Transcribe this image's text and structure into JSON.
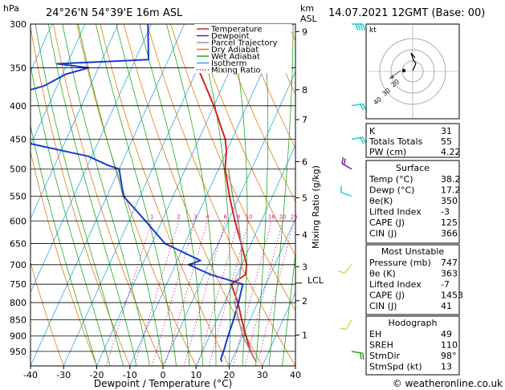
{
  "header": {
    "location": "24°26'N  54°39'E  16m  ASL",
    "date": "14.07.2021  12GMT  (Base: 00)"
  },
  "axes": {
    "y_unit": "hPa",
    "y_right_unit_1": "km",
    "y_right_unit_2": "ASL",
    "x_label": "Dewpoint / Temperature (°C)",
    "mixing_ratio_label": "Mixing Ratio (g/kg)",
    "lcl_label": "LCL",
    "kt_label": "kt"
  },
  "chart_data": {
    "type": "line",
    "subtype": "skew-T log-P",
    "pressure_levels": [
      300,
      350,
      400,
      450,
      500,
      550,
      600,
      650,
      700,
      750,
      800,
      850,
      900,
      950
    ],
    "x_ticks": [
      -40,
      -30,
      -20,
      -10,
      0,
      10,
      20,
      30,
      40
    ],
    "xlim": [
      -40,
      40
    ],
    "ylim": [
      1000,
      300
    ],
    "y_scale": "log",
    "km_labels": [
      {
        "km": "9",
        "p": 308
      },
      {
        "km": "8",
        "p": 378
      },
      {
        "km": "7",
        "p": 420
      },
      {
        "km": "6",
        "p": 487
      },
      {
        "km": "5",
        "p": 553
      },
      {
        "km": "4",
        "p": 630
      },
      {
        "km": "3",
        "p": 705
      },
      {
        "km": "2",
        "p": 795
      },
      {
        "km": "1",
        "p": 897
      }
    ],
    "lcl_pressure": 747,
    "mixing_ratio_values": [
      "1",
      "2",
      "3",
      "4",
      "6",
      "8",
      "10",
      "16",
      "20",
      "25"
    ],
    "legend": {
      "placement": "top-left",
      "entries": [
        {
          "name": "Temperature",
          "color": "#dd2020",
          "dash": "solid"
        },
        {
          "name": "Dewpoint",
          "color": "#1a3ad4",
          "dash": "solid"
        },
        {
          "name": "Parcel Trajectory",
          "color": "#999999",
          "dash": "solid"
        },
        {
          "name": "Dry Adiabat",
          "color": "#e07b10",
          "dash": "solid"
        },
        {
          "name": "Wet Adiabat",
          "color": "#22aa22",
          "dash": "solid"
        },
        {
          "name": "Isotherm",
          "color": "#2ea8e0",
          "dash": "solid"
        },
        {
          "name": "Mixing Ratio",
          "color": "#cc1a8a",
          "dash": "dotted"
        }
      ]
    },
    "series": [
      {
        "name": "Temperature",
        "color": "#dd2020",
        "points": [
          [
            -33,
            320
          ],
          [
            -30,
            350
          ],
          [
            -20,
            400
          ],
          [
            -12,
            450
          ],
          [
            -10,
            470
          ],
          [
            -8,
            500
          ],
          [
            -3,
            550
          ],
          [
            2,
            600
          ],
          [
            7,
            650
          ],
          [
            11.5,
            700
          ],
          [
            12.5,
            725
          ],
          [
            9.5,
            750
          ],
          [
            14,
            800
          ],
          [
            17.5,
            850
          ],
          [
            21,
            900
          ],
          [
            24.5,
            950
          ],
          [
            27.5,
            985
          ]
        ]
      },
      {
        "name": "Dewpoint",
        "color": "#1a3ad4",
        "points": [
          [
            -51,
            300
          ],
          [
            -46,
            340
          ],
          [
            -73,
            345
          ],
          [
            -63,
            350
          ],
          [
            -69,
            358
          ],
          [
            -74,
            373
          ],
          [
            -87,
            392
          ],
          [
            -96,
            420
          ],
          [
            -77,
            450
          ],
          [
            -51,
            478
          ],
          [
            -44,
            493
          ],
          [
            -40,
            500
          ],
          [
            -35,
            550
          ],
          [
            -25,
            600
          ],
          [
            -16,
            650
          ],
          [
            -3,
            690
          ],
          [
            -6,
            700
          ],
          [
            2,
            725
          ],
          [
            13,
            750
          ],
          [
            14.2,
            800
          ],
          [
            15,
            850
          ],
          [
            15.6,
            900
          ],
          [
            16.3,
            950
          ],
          [
            16.5,
            975
          ],
          [
            17.2,
            985
          ]
        ]
      },
      {
        "name": "Parcel Trajectory",
        "color": "#999999",
        "points": [
          [
            27.5,
            985
          ],
          [
            20,
            900
          ],
          [
            13,
            800
          ],
          [
            11.5,
            747
          ],
          [
            10,
            700
          ],
          [
            7,
            650
          ],
          [
            3,
            600
          ],
          [
            -2,
            550
          ],
          [
            -7,
            500
          ]
        ]
      }
    ],
    "winds_kt": [
      {
        "p": 300,
        "dir": 90,
        "speed": 35
      },
      {
        "p": 400,
        "dir": 80,
        "speed": 20
      },
      {
        "p": 450,
        "dir": 80,
        "speed": 20
      },
      {
        "p": 500,
        "dir": 300,
        "speed": 20
      },
      {
        "p": 550,
        "dir": 290,
        "speed": 10
      },
      {
        "p": 700,
        "dir": 220,
        "speed": 10
      },
      {
        "p": 850,
        "dir": 210,
        "speed": 5
      },
      {
        "p": 950,
        "dir": 100,
        "speed": 15
      }
    ],
    "hodograph": {
      "ring_labels": [
        "40",
        "30",
        "20"
      ],
      "storm_motion": {
        "dir_deg": 98,
        "speed_kt": 13
      }
    }
  },
  "indices": {
    "k": {
      "label": "K",
      "value": "31"
    },
    "tt": {
      "label": "Totals Totals",
      "value": "55"
    },
    "pw": {
      "label": "PW (cm)",
      "value": "4.22"
    }
  },
  "surface": {
    "title": "Surface",
    "rows": [
      {
        "label": "Temp (°C)",
        "value": "38.2"
      },
      {
        "label": "Dewp (°C)",
        "value": "17.2"
      },
      {
        "label": "θe(K)",
        "value": "350"
      },
      {
        "label": "Lifted Index",
        "value": "-3"
      },
      {
        "label": "CAPE (J)",
        "value": "125"
      },
      {
        "label": "CIN (J)",
        "value": "366"
      }
    ]
  },
  "unstable": {
    "title": "Most Unstable",
    "rows": [
      {
        "label": "Pressure (mb)",
        "value": "747"
      },
      {
        "label": "θe (K)",
        "value": "363"
      },
      {
        "label": "Lifted Index",
        "value": "-7"
      },
      {
        "label": "CAPE (J)",
        "value": "1453"
      },
      {
        "label": "CIN (J)",
        "value": "41"
      }
    ]
  },
  "hodo_table": {
    "title": "Hodograph",
    "rows": [
      {
        "label": "EH",
        "value": "49"
      },
      {
        "label": "SREH",
        "value": "110"
      },
      {
        "label": "StmDir",
        "value": "98°"
      },
      {
        "label": "StmSpd (kt)",
        "value": "13"
      }
    ]
  },
  "footer": {
    "copyright": "© weatheronline.co.uk"
  }
}
